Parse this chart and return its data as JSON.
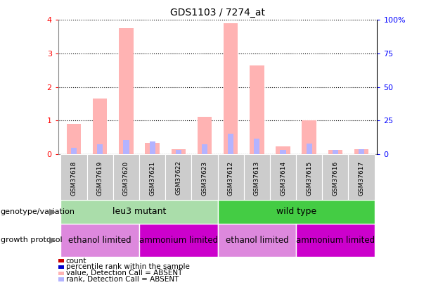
{
  "title": "GDS1103 / 7274_at",
  "samples": [
    "GSM37618",
    "GSM37619",
    "GSM37620",
    "GSM37621",
    "GSM37622",
    "GSM37623",
    "GSM37612",
    "GSM37613",
    "GSM37614",
    "GSM37615",
    "GSM37616",
    "GSM37617"
  ],
  "value_absent": [
    0.9,
    1.65,
    3.75,
    0.32,
    0.15,
    1.1,
    3.9,
    2.65,
    0.22,
    1.0,
    0.12,
    0.15
  ],
  "rank_absent": [
    0.18,
    0.28,
    0.42,
    0.38,
    0.12,
    0.28,
    0.6,
    0.46,
    0.12,
    0.3,
    0.12,
    0.15
  ],
  "ylim_left": [
    0,
    4
  ],
  "ylim_right": [
    0,
    100
  ],
  "yticks_left": [
    0,
    1,
    2,
    3,
    4
  ],
  "yticks_right": [
    0,
    25,
    50,
    75,
    100
  ],
  "yticklabels_right": [
    "0",
    "25",
    "50",
    "75",
    "100%"
  ],
  "value_absent_color": "#ffb3b3",
  "rank_absent_color": "#b3b3ff",
  "count_color": "#cc0000",
  "rank_color": "#0000cc",
  "genotype_groups": [
    {
      "label": "leu3 mutant",
      "start": 0,
      "end": 6,
      "color": "#aaddaa"
    },
    {
      "label": "wild type",
      "start": 6,
      "end": 12,
      "color": "#44cc44"
    }
  ],
  "growth_groups": [
    {
      "label": "ethanol limited",
      "start": 0,
      "end": 3,
      "color": "#dd88dd"
    },
    {
      "label": "ammonium limited",
      "start": 3,
      "end": 6,
      "color": "#cc00cc"
    },
    {
      "label": "ethanol limited",
      "start": 6,
      "end": 9,
      "color": "#dd88dd"
    },
    {
      "label": "ammonium limited",
      "start": 9,
      "end": 12,
      "color": "#cc00cc"
    }
  ],
  "legend_items": [
    {
      "label": "count",
      "color": "#cc0000"
    },
    {
      "label": "percentile rank within the sample",
      "color": "#0000cc"
    },
    {
      "label": "value, Detection Call = ABSENT",
      "color": "#ffb3b3"
    },
    {
      "label": "rank, Detection Call = ABSENT",
      "color": "#b3b3ff"
    }
  ]
}
